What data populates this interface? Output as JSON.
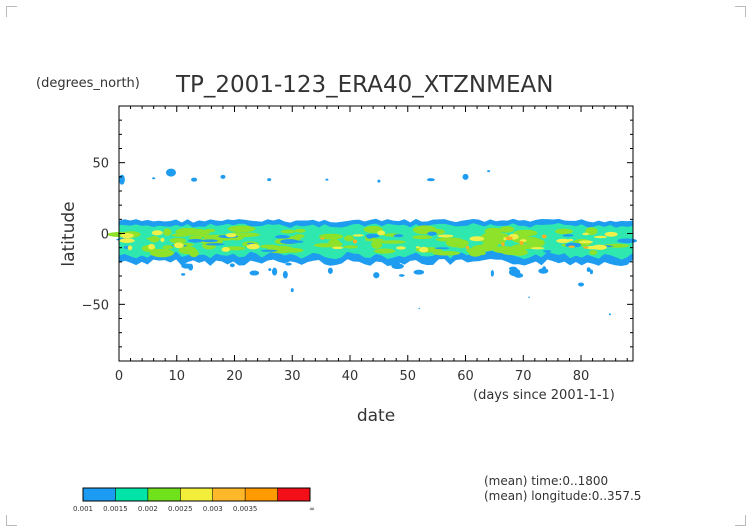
{
  "chart_data": {
    "type": "heatmap",
    "title": "TP_2001-123_ERA40_XTZNMEAN",
    "y_units": "(degrees_north)",
    "ylabel": "latitude",
    "xlabel": "date",
    "x_units": "(days since 2001-1-1)",
    "xlim": [
      0,
      89
    ],
    "ylim": [
      -90,
      90
    ],
    "xticks": [
      0,
      10,
      20,
      30,
      40,
      50,
      60,
      70,
      80
    ],
    "xtick_labels": [
      "0",
      "10",
      "20",
      "30",
      "40",
      "50",
      "60",
      "70",
      "80"
    ],
    "yticks": [
      50,
      0,
      -50
    ],
    "ytick_labels": [
      "50",
      "0",
      "−50"
    ],
    "band": {
      "latitude_top": 9,
      "latitude_bottom": -20
    },
    "level_bounds": [
      0.001,
      0.0015,
      0.002,
      0.0025,
      0.003,
      0.0035
    ],
    "colorbar_tick_labels": [
      "0.001",
      "0.0015",
      "0.002",
      "0.0025",
      "0.003",
      "0.0035",
      "∞"
    ],
    "colorbar_colors": [
      "#1b9cf2",
      "#00e4a8",
      "#6fe21b",
      "#f2ee3a",
      "#ffb82a",
      "#ff9a00",
      "#f20f17"
    ],
    "palette": {
      "blue": "#1e9cf0",
      "cyan": "#2ee8b0",
      "green": "#8ee22a",
      "yellow": "#f0f04a",
      "orange": "#ffb020"
    },
    "notes": [
      "(mean) time:0..1800",
      "(mean) longitude:0..357.5"
    ]
  }
}
